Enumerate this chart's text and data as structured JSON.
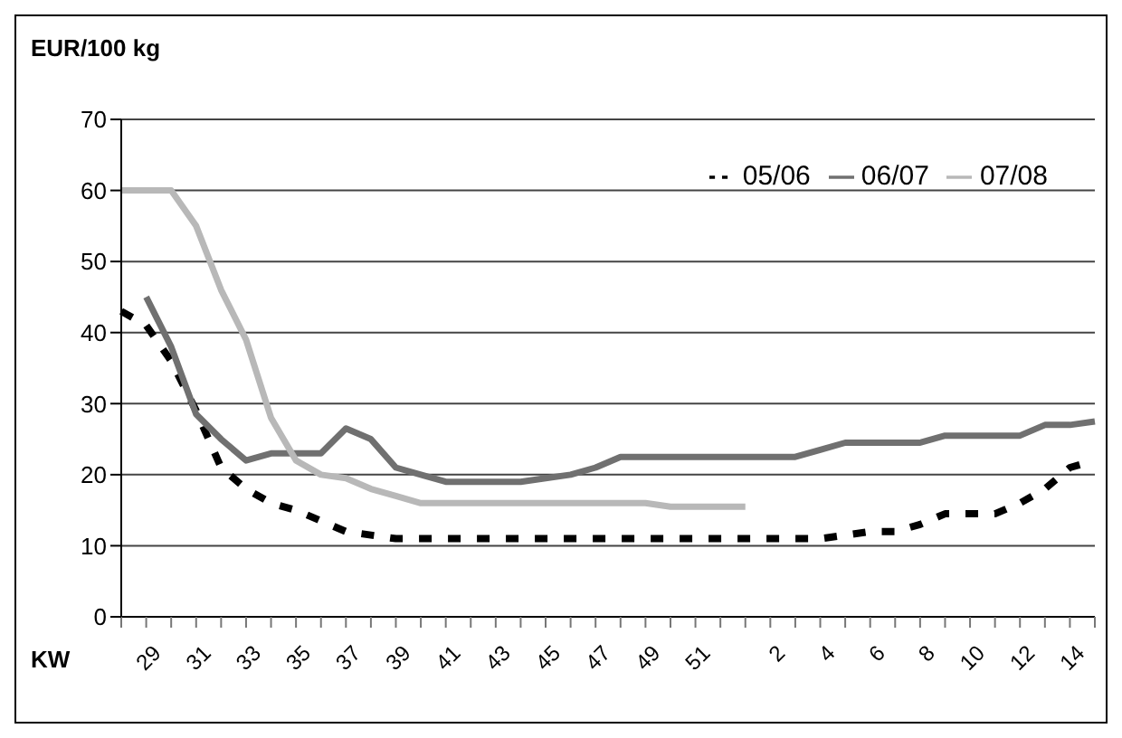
{
  "chart_data": {
    "type": "line",
    "title": "EUR/100 kg",
    "xlabel": "KW",
    "categories": [
      null,
      "29",
      null,
      "31",
      null,
      "33",
      null,
      "35",
      null,
      "37",
      null,
      "39",
      null,
      "41",
      null,
      "43",
      null,
      "45",
      null,
      "47",
      null,
      "49",
      null,
      "51",
      null,
      null,
      "2",
      null,
      "4",
      null,
      "6",
      null,
      "8",
      null,
      "10",
      null,
      "12",
      null,
      "14",
      null
    ],
    "series": [
      {
        "name": "05/06",
        "color": "#000000",
        "line_style": "dashed",
        "values": [
          43,
          41,
          36,
          29,
          21,
          18,
          16,
          15,
          13.5,
          12,
          11.5,
          11,
          11,
          11,
          11,
          11,
          11,
          11,
          11,
          11,
          11,
          11,
          11,
          11,
          11,
          11,
          11,
          11,
          11,
          11.5,
          12,
          12,
          13,
          14.5,
          14.5,
          14.5,
          16,
          18,
          21,
          22
        ]
      },
      {
        "name": "06/07",
        "color": "#707070",
        "line_style": "solid",
        "values": [
          null,
          45,
          38,
          28.5,
          25,
          22,
          23,
          23,
          23,
          26.5,
          25,
          21,
          20,
          19,
          19,
          19,
          19,
          19.5,
          20,
          21,
          22.5,
          22.5,
          22.5,
          22.5,
          22.5,
          22.5,
          22.5,
          22.5,
          23.5,
          24.5,
          24.5,
          24.5,
          24.5,
          25.5,
          25.5,
          25.5,
          25.5,
          27,
          27,
          27.5
        ]
      },
      {
        "name": "07/08",
        "color": "#b8b8b8",
        "line_style": "solid",
        "values": [
          60,
          60,
          60,
          55,
          46,
          39,
          28,
          22,
          20,
          19.5,
          18,
          17,
          16,
          16,
          16,
          16,
          16,
          16,
          16,
          16,
          16,
          16,
          15.5,
          15.5,
          15.5,
          15.5,
          null,
          null,
          null,
          null,
          null,
          null,
          null,
          null,
          null,
          null,
          null,
          null,
          null,
          null
        ]
      }
    ],
    "ylim": [
      0,
      70
    ],
    "yticks": [
      0,
      10,
      20,
      30,
      40,
      50,
      60,
      70
    ],
    "grid": "y",
    "legend": "top right",
    "marker": "none"
  }
}
